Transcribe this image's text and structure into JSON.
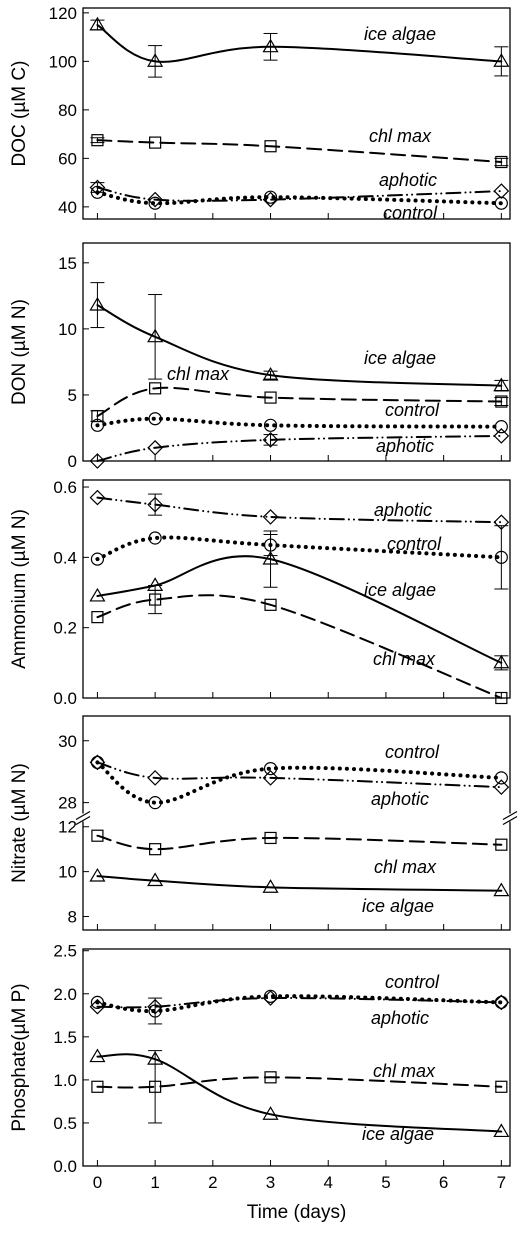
{
  "chart_data": [
    {
      "type": "line",
      "ylabel": "DOC (µM C)",
      "ylim": [
        35,
        122
      ],
      "yticks": [
        40,
        60,
        80,
        100,
        120
      ],
      "x": [
        0,
        1,
        3,
        7
      ],
      "series": [
        {
          "name": "ice algae",
          "style": "solid",
          "marker": "triangle",
          "values": [
            115,
            100,
            106,
            100
          ],
          "errors": [
            2,
            6.5,
            5.5,
            6
          ]
        },
        {
          "name": "chl max",
          "style": "dashed",
          "marker": "square",
          "values": [
            67.5,
            66.5,
            65,
            58.5
          ],
          "errors": [
            1,
            0,
            0,
            1.5
          ]
        },
        {
          "name": "aphotic",
          "style": "dashdotdot",
          "marker": "diamond",
          "values": [
            48,
            43,
            43,
            46.5
          ],
          "errors": [
            2,
            0,
            0,
            0
          ]
        },
        {
          "name": "control",
          "style": "dotted",
          "marker": "circle",
          "values": [
            46,
            41.5,
            44,
            41.5
          ],
          "errors": [
            0,
            0,
            0,
            0
          ]
        }
      ]
    },
    {
      "type": "line",
      "ylabel": "DON (µM N)",
      "ylim": [
        0,
        16.5
      ],
      "yticks": [
        0,
        5,
        10,
        15
      ],
      "x": [
        0,
        1,
        3,
        7
      ],
      "series": [
        {
          "name": "ice algae",
          "style": "solid",
          "marker": "triangle",
          "values": [
            11.8,
            9.4,
            6.5,
            5.7
          ],
          "errors": [
            1.7,
            3.2,
            0.3,
            0.4
          ]
        },
        {
          "name": "chl max",
          "style": "dashed",
          "marker": "square",
          "values": [
            3.4,
            5.5,
            4.8,
            4.5
          ],
          "errors": [
            0.4,
            0,
            0,
            0.3
          ]
        },
        {
          "name": "control",
          "style": "dotted",
          "marker": "circle",
          "values": [
            2.7,
            3.2,
            2.7,
            2.6
          ],
          "errors": [
            0,
            0,
            0,
            0
          ]
        },
        {
          "name": "aphotic",
          "style": "dashdotdot",
          "marker": "diamond",
          "values": [
            0,
            1.0,
            1.6,
            1.9
          ],
          "errors": [
            0,
            0,
            0.4,
            0
          ]
        }
      ]
    },
    {
      "type": "line",
      "ylabel": "Ammonium (µM N)",
      "ylim": [
        0,
        0.62
      ],
      "yticks": [
        0.0,
        0.2,
        0.4,
        0.6
      ],
      "x": [
        0,
        1,
        3,
        7
      ],
      "series": [
        {
          "name": "aphotic",
          "style": "dashdotdot",
          "marker": "diamond",
          "values": [
            0.57,
            0.55,
            0.515,
            0.5
          ],
          "errors": [
            0,
            0.03,
            0,
            0
          ]
        },
        {
          "name": "control",
          "style": "dotted",
          "marker": "circle",
          "values": [
            0.395,
            0.455,
            0.435,
            0.4
          ],
          "errors": [
            0,
            0,
            0.03,
            0.09
          ]
        },
        {
          "name": "ice algae",
          "style": "solid",
          "marker": "triangle",
          "values": [
            0.29,
            0.32,
            0.395,
            0.1
          ],
          "errors": [
            0,
            0,
            0.08,
            0.02
          ]
        },
        {
          "name": "chl max",
          "style": "dashed",
          "marker": "square",
          "values": [
            0.23,
            0.28,
            0.265,
            0.0
          ],
          "errors": [
            0,
            0.04,
            0,
            0
          ]
        }
      ]
    },
    {
      "type": "line",
      "ylabel": "Nitrate (µM N)",
      "broken_axis": true,
      "upper_ylim": [
        27.6,
        30.8
      ],
      "upper_yticks": [
        28,
        30
      ],
      "lower_ylim": [
        7.4,
        12.3
      ],
      "lower_yticks": [
        8,
        10,
        12
      ],
      "x": [
        0,
        1,
        3,
        7
      ],
      "series": [
        {
          "name": "control",
          "style": "dotted",
          "marker": "circle",
          "values": [
            29.3,
            28.0,
            29.1,
            28.8
          ],
          "errors": [
            0,
            0,
            0,
            0
          ]
        },
        {
          "name": "aphotic",
          "style": "dashdotdot",
          "marker": "diamond",
          "values": [
            29.3,
            28.8,
            28.8,
            28.5
          ],
          "errors": [
            0,
            0,
            0,
            0
          ]
        },
        {
          "name": "chl max",
          "style": "dashed",
          "marker": "square",
          "values": [
            11.6,
            11.0,
            11.5,
            11.2
          ],
          "errors": [
            0,
            0,
            0,
            0
          ]
        },
        {
          "name": "ice algae",
          "style": "solid",
          "marker": "triangle",
          "values": [
            9.8,
            9.6,
            9.3,
            9.15
          ],
          "errors": [
            0,
            0,
            0,
            0
          ]
        }
      ]
    },
    {
      "type": "line",
      "ylabel": "Phosphate(µM P)",
      "xlabel": "Time (days)",
      "ylim": [
        0,
        2.52
      ],
      "yticks": [
        0.0,
        0.5,
        1.0,
        1.5,
        2.0,
        2.5
      ],
      "x": [
        0,
        1,
        3,
        7
      ],
      "xtick_labels": [
        "0",
        "1",
        "2",
        "3",
        "4",
        "5",
        "6",
        "7"
      ],
      "series": [
        {
          "name": "control",
          "style": "dotted",
          "marker": "circle",
          "values": [
            1.9,
            1.8,
            1.97,
            1.9
          ],
          "errors": [
            0,
            0.15,
            0,
            0
          ]
        },
        {
          "name": "aphotic",
          "style": "dashdotdot",
          "marker": "diamond",
          "values": [
            1.85,
            1.85,
            1.95,
            1.9
          ],
          "errors": [
            0,
            0,
            0,
            0
          ]
        },
        {
          "name": "chl max",
          "style": "dashed",
          "marker": "square",
          "values": [
            0.92,
            0.92,
            1.03,
            0.92
          ],
          "errors": [
            0,
            0.42,
            0,
            0
          ]
        },
        {
          "name": "ice algae",
          "style": "solid",
          "marker": "triangle",
          "values": [
            1.27,
            1.24,
            0.6,
            0.4
          ],
          "errors": [
            0,
            0,
            0,
            0
          ]
        }
      ]
    }
  ]
}
